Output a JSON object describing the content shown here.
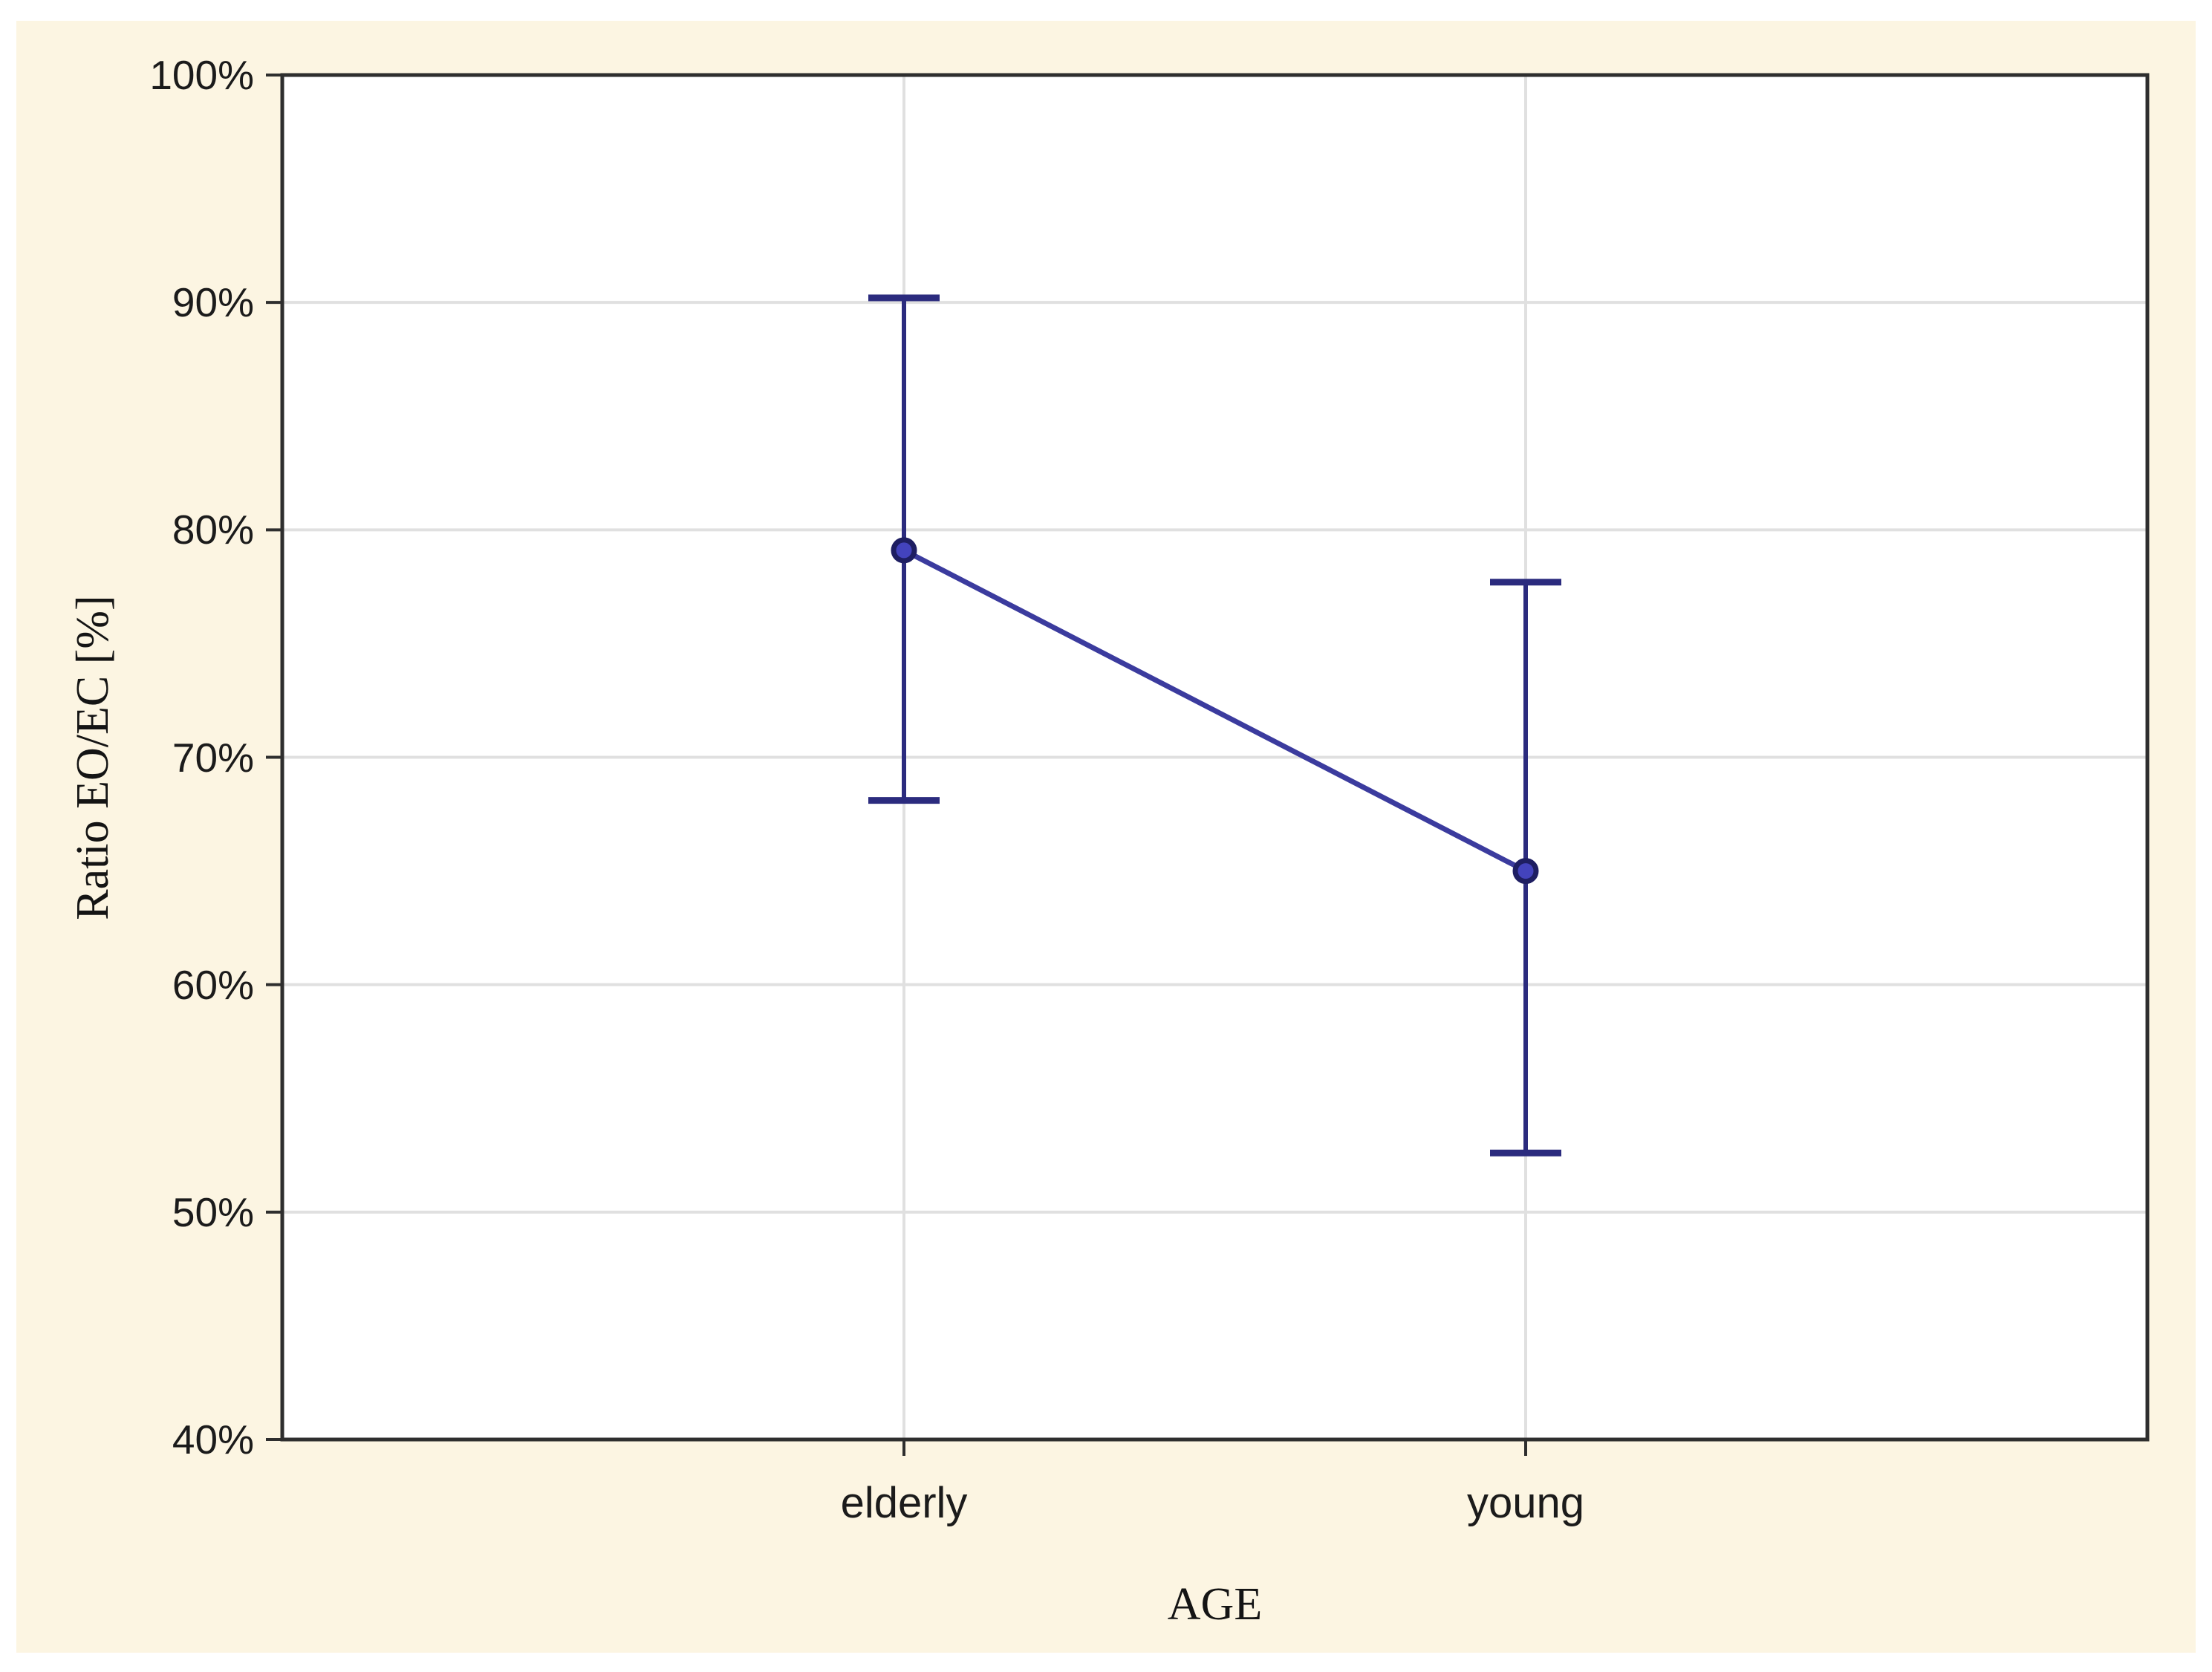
{
  "figure": {
    "page_background": "#ffffff",
    "panel_background": "#fcf5e2",
    "plot_background": "#ffffff",
    "frame_color": "#2e2e2e",
    "grid_color": "#e0e0e0",
    "tick_color": "#2e2e2e",
    "text_color": "#1b1b1b",
    "accent_whisker": "#2b2b7e",
    "accent_line": "#3b3b9e",
    "marker_fill": "#4343bd",
    "marker_stroke": "#1e1e62"
  },
  "chart_data": {
    "type": "line",
    "subtype": "means-with-95ci-error-bars",
    "title": "",
    "xlabel": "AGE",
    "ylabel": "Ratio EO/EC [%]",
    "categories": [
      "elderly",
      "young"
    ],
    "series": [
      {
        "name": "Ratio EO/EC",
        "means": [
          79.1,
          65.0
        ],
        "ci_low": [
          68.1,
          52.6
        ],
        "ci_high": [
          90.2,
          77.7
        ]
      }
    ],
    "ylim": [
      40,
      100
    ],
    "y_ticks": [
      {
        "value": 100,
        "label": "100%"
      },
      {
        "value": 90,
        "label": "90%"
      },
      {
        "value": 80,
        "label": "80%"
      },
      {
        "value": 70,
        "label": "70%"
      },
      {
        "value": 60,
        "label": "60%"
      },
      {
        "value": 50,
        "label": "50%"
      },
      {
        "value": 40,
        "label": "40%"
      }
    ],
    "grid": {
      "horizontal": true,
      "vertical_at_categories": true
    },
    "legend": "none",
    "marker": "open-circle",
    "error_bars": "whiskers-with-caps"
  }
}
